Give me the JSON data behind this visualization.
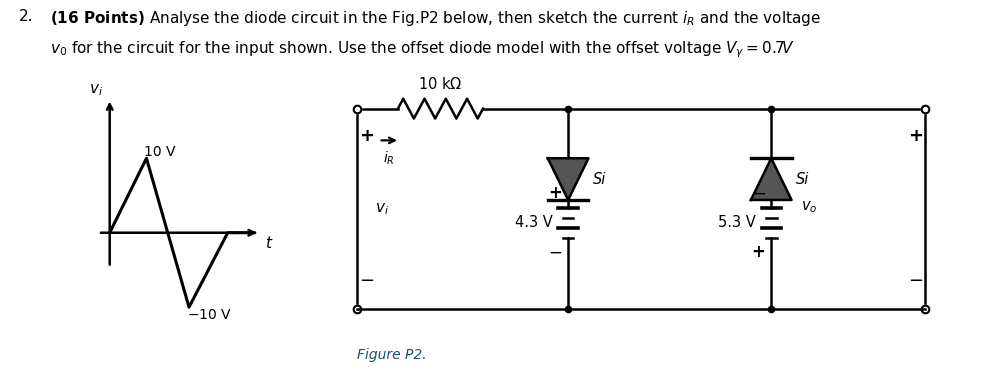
{
  "bg_color": "#ffffff",
  "figure_label": "Figure P2.",
  "resistor_label": "10 kΩ",
  "voltage_source1": "4.3 V",
  "voltage_source2": "5.3 V",
  "diode_label": "Si",
  "v10": "10 V",
  "vm10": "−10 V",
  "lw": 1.8,
  "diode_color": "#555555",
  "title_bold": "(16 Points)",
  "title_rest1": " Analyse the diode circuit in the Fig.P2 below, then sketch the current ",
  "title_rest2": " for the circuit for the input shown. Use the offset diode model with the offset voltage ",
  "figure_p2_color": "#1a5276"
}
